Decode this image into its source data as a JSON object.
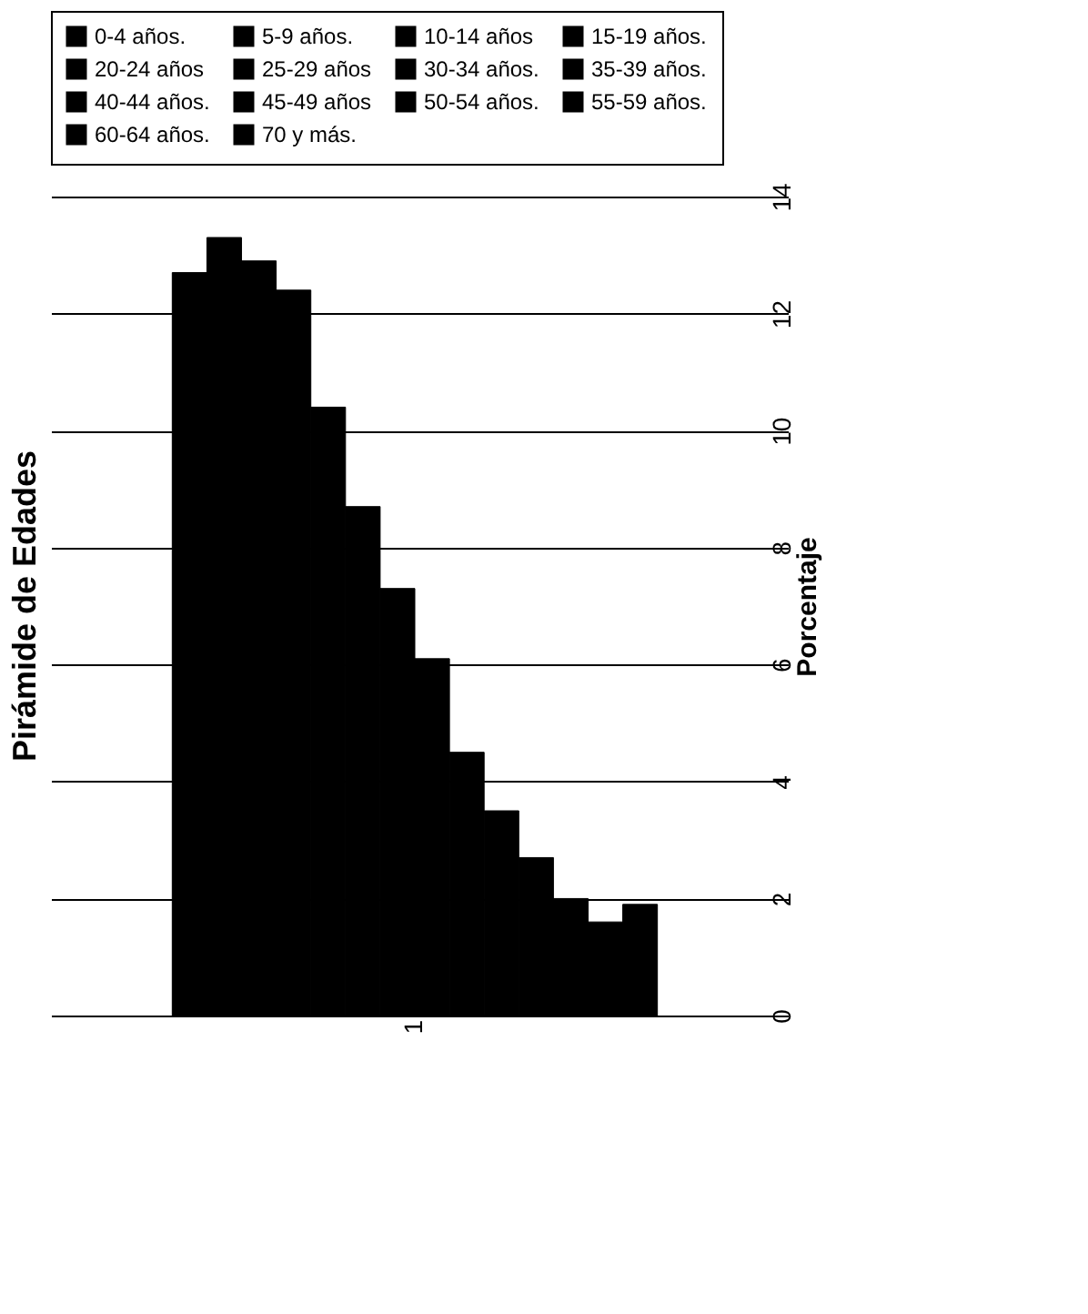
{
  "chart_data": {
    "type": "bar",
    "title": "Pirámide de Edades",
    "ylabel": "Porcentaje",
    "categories": [
      "1"
    ],
    "series": [
      {
        "name": "0-4 años.",
        "color": "#000000",
        "values": [
          12.7
        ]
      },
      {
        "name": "5-9 años.",
        "color": "#000000",
        "values": [
          13.3
        ]
      },
      {
        "name": "10-14 años",
        "color": "#000000",
        "values": [
          12.9
        ]
      },
      {
        "name": "15-19 años.",
        "color": "#000000",
        "values": [
          12.4
        ]
      },
      {
        "name": "20-24 años",
        "color": "#000000",
        "values": [
          10.4
        ]
      },
      {
        "name": "25-29 años",
        "color": "#000000",
        "values": [
          8.7
        ]
      },
      {
        "name": "30-34 años.",
        "color": "#000000",
        "values": [
          7.3
        ]
      },
      {
        "name": "35-39 años.",
        "color": "#000000",
        "values": [
          6.1
        ]
      },
      {
        "name": "40-44 años.",
        "color": "#000000",
        "values": [
          4.5
        ]
      },
      {
        "name": "45-49 años",
        "color": "#000000",
        "values": [
          3.5
        ]
      },
      {
        "name": "50-54 años.",
        "color": "#000000",
        "values": [
          2.7
        ]
      },
      {
        "name": "55-59 años.",
        "color": "#000000",
        "values": [
          2.0
        ]
      },
      {
        "name": "60-64 años.",
        "color": "#000000",
        "values": [
          1.6
        ]
      },
      {
        "name": "70 y más.",
        "color": "#000000",
        "values": [
          1.9
        ]
      }
    ],
    "ylim": [
      0,
      14
    ],
    "yticks": [
      0,
      2,
      4,
      6,
      8,
      10,
      12,
      14
    ],
    "grid": "y",
    "legend": "top"
  }
}
